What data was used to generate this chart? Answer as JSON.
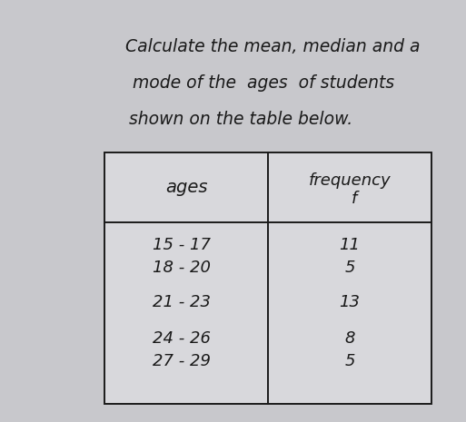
{
  "title_line1": "Calculate the mean, median and a",
  "title_line2": "mode of the  ages  of students",
  "title_line3": "shown on the table below.",
  "col1_header": "ages",
  "col2_header": "frequency",
  "col2_header2": "f",
  "rows": [
    [
      "15 - 17",
      "11"
    ],
    [
      "18 - 20",
      "5"
    ],
    [
      "21 - 23",
      "13"
    ],
    [
      "24 - 26",
      "8"
    ],
    [
      "27 - 29",
      "5"
    ]
  ],
  "bg_color": "#c8c8cc",
  "text_color": "#1a1a1a",
  "font_size_title": 13.5,
  "font_size_table": 13
}
